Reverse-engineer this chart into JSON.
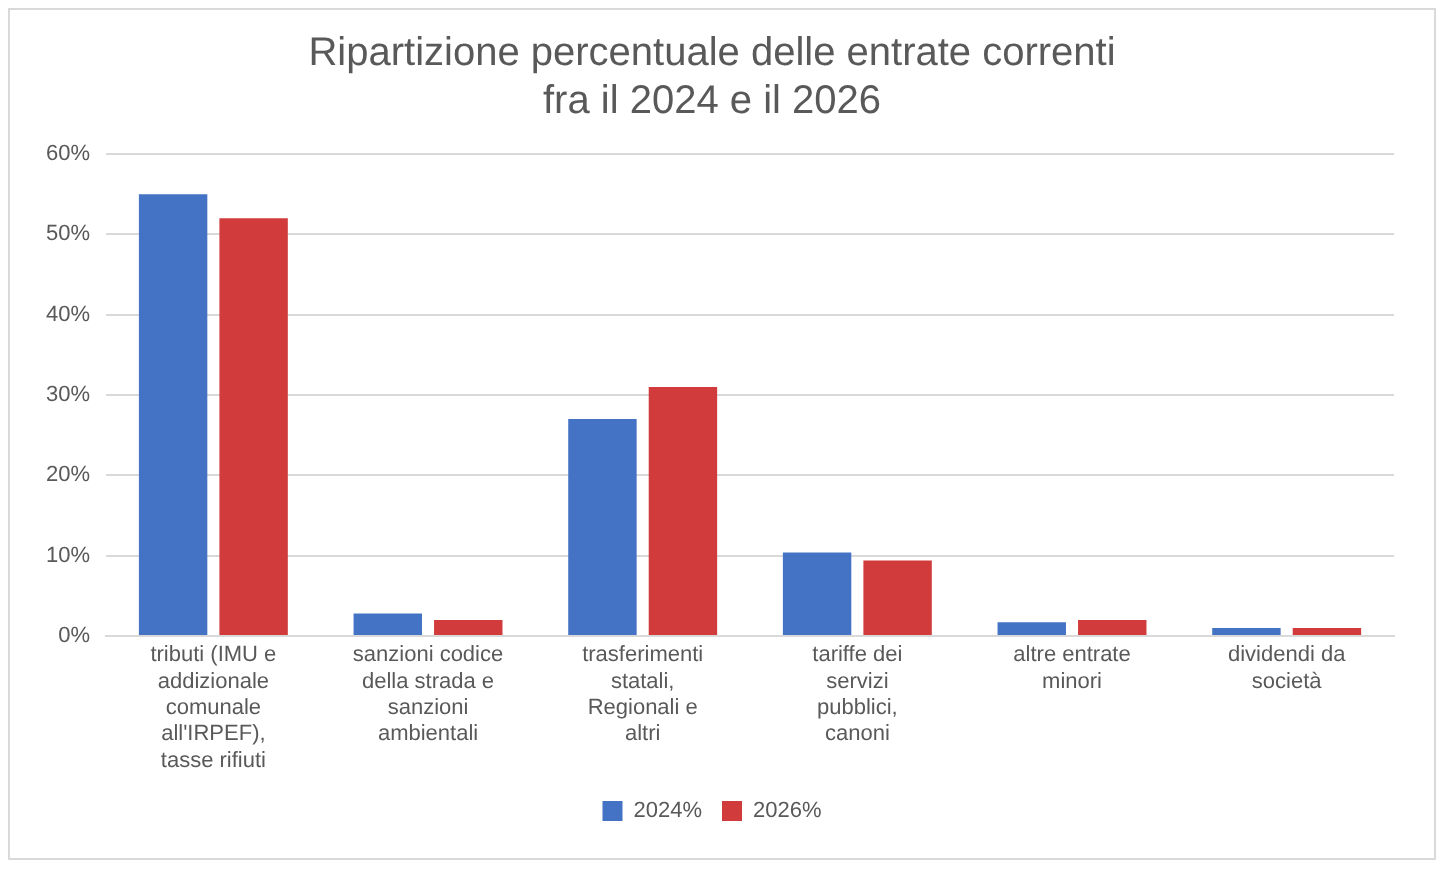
{
  "chart_data": {
    "type": "bar",
    "title": "Ripartizione percentuale delle entrate correnti fra il 2024 e il 2026",
    "categories": [
      "tributi (IMU e addizionale comunale all'IRPEF), tasse rifiuti",
      "sanzioni codice della strada e sanzioni ambientali",
      "trasferimenti statali, Regionali e altri",
      "tariffe dei servizi pubblici, canoni",
      "altre entrate minori",
      "dividendi da società"
    ],
    "series": [
      {
        "name": "2024%",
        "color": "#4472c4",
        "values": [
          55,
          2.8,
          27,
          10.4,
          1.7,
          1
        ]
      },
      {
        "name": "2026%",
        "color": "#d13b3b",
        "values": [
          52,
          2,
          31,
          9.4,
          2,
          1
        ]
      }
    ],
    "ylim": [
      0,
      60
    ],
    "yticks": [
      {
        "value": 0,
        "label": "0%"
      },
      {
        "value": 10,
        "label": "10%"
      },
      {
        "value": 20,
        "label": "20%"
      },
      {
        "value": 30,
        "label": "30%"
      },
      {
        "value": 40,
        "label": "40%"
      },
      {
        "value": 50,
        "label": "50%"
      },
      {
        "value": 60,
        "label": "60%"
      }
    ],
    "grid": "y",
    "legend": "bottom"
  }
}
